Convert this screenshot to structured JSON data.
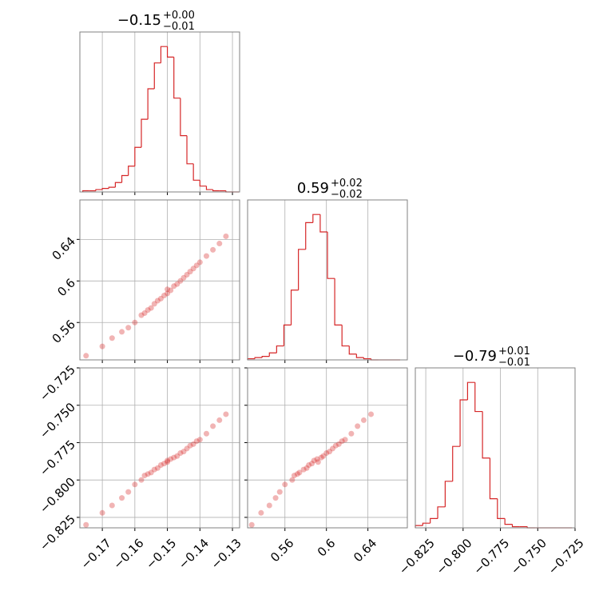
{
  "chart_data": {
    "type": "corner",
    "color": "#d62728",
    "grid": true,
    "parameters": [
      {
        "title": "−0.15",
        "upper": "+0.00",
        "lower": "−0.01",
        "lim": [
          -0.1769,
          -0.1278
        ],
        "ticks": [
          {
            "value": -0.17,
            "label": "−0.17"
          },
          {
            "value": -0.16,
            "label": "−0.16"
          },
          {
            "value": -0.15,
            "label": "−0.15"
          },
          {
            "value": -0.14,
            "label": "−0.14"
          },
          {
            "value": -0.13,
            "label": "−0.13"
          }
        ],
        "bins": [
          -0.176,
          -0.174,
          -0.172,
          -0.17,
          -0.168,
          -0.166,
          -0.164,
          -0.162,
          -0.16,
          -0.158,
          -0.156,
          -0.154,
          -0.152,
          -0.15,
          -0.148,
          -0.146,
          -0.144,
          -0.142,
          -0.14,
          -0.138,
          -0.136,
          -0.134,
          -0.132,
          -0.13,
          -0.128
        ],
        "counts": [
          1,
          1,
          2,
          3,
          4,
          8,
          14,
          22,
          38,
          62,
          88,
          110,
          124,
          115,
          80,
          48,
          24,
          10,
          5,
          2,
          1,
          1,
          0,
          0
        ]
      },
      {
        "title": "0.59",
        "upper": "+0.02",
        "lower": "−0.02",
        "lim": [
          0.524,
          0.678
        ],
        "ticks": [
          0.56,
          0.6,
          {
            "value": 0.64,
            "label": "0.64"
          }
        ],
        "bins": [
          0.524,
          0.531,
          0.538,
          0.545,
          0.552,
          0.559,
          0.566,
          0.573,
          0.58,
          0.587,
          0.594,
          0.601,
          0.608,
          0.615,
          0.622,
          0.629,
          0.636,
          0.643,
          0.65,
          0.657,
          0.664,
          0.671
        ],
        "counts": [
          1,
          2,
          3,
          6,
          12,
          30,
          60,
          95,
          118,
          125,
          110,
          70,
          30,
          12,
          5,
          2,
          1,
          0,
          0,
          0,
          0
        ]
      },
      {
        "title": "−0.79",
        "upper": "+0.01",
        "lower": "−0.01",
        "lim": [
          -0.832,
          -0.725
        ],
        "ticks": [
          {
            "value": -0.825,
            "label": "−0.825"
          },
          {
            "value": -0.8,
            "label": "−0.800"
          },
          {
            "value": -0.775,
            "label": "−0.775"
          },
          {
            "value": -0.75,
            "label": "−0.750"
          },
          {
            "value": -0.725,
            "label": "−0.725"
          }
        ],
        "bins": [
          -0.832,
          -0.827,
          -0.822,
          -0.817,
          -0.812,
          -0.807,
          -0.802,
          -0.797,
          -0.792,
          -0.787,
          -0.782,
          -0.777,
          -0.772,
          -0.767,
          -0.762,
          -0.757,
          -0.752,
          -0.747,
          -0.742,
          -0.737,
          -0.732,
          -0.727
        ],
        "counts": [
          2,
          4,
          8,
          18,
          40,
          70,
          110,
          125,
          100,
          60,
          25,
          8,
          3,
          1,
          1,
          0,
          0,
          0,
          0,
          0,
          0
        ]
      }
    ],
    "samples": [
      [
        -0.175,
        0.528,
        -0.83
      ],
      [
        -0.17,
        0.537,
        -0.822
      ],
      [
        -0.167,
        0.545,
        -0.817
      ],
      [
        -0.164,
        0.551,
        -0.812
      ],
      [
        -0.162,
        0.555,
        -0.808
      ],
      [
        -0.16,
        0.56,
        -0.803
      ],
      [
        -0.158,
        0.567,
        -0.8
      ],
      [
        -0.157,
        0.569,
        -0.797
      ],
      [
        -0.156,
        0.572,
        -0.796
      ],
      [
        -0.155,
        0.574,
        -0.795
      ],
      [
        -0.154,
        0.578,
        -0.793
      ],
      [
        -0.153,
        0.581,
        -0.792
      ],
      [
        -0.152,
        0.583,
        -0.79
      ],
      [
        -0.151,
        0.586,
        -0.789
      ],
      [
        -0.15,
        0.588,
        -0.787
      ],
      [
        -0.15,
        0.592,
        -0.788
      ],
      [
        -0.149,
        0.591,
        -0.786
      ],
      [
        -0.148,
        0.595,
        -0.785
      ],
      [
        -0.147,
        0.597,
        -0.784
      ],
      [
        -0.146,
        0.6,
        -0.782
      ],
      [
        -0.145,
        0.603,
        -0.781
      ],
      [
        -0.144,
        0.606,
        -0.779
      ],
      [
        -0.143,
        0.609,
        -0.777
      ],
      [
        -0.142,
        0.612,
        -0.776
      ],
      [
        -0.141,
        0.615,
        -0.774
      ],
      [
        -0.14,
        0.618,
        -0.773
      ],
      [
        -0.138,
        0.624,
        -0.769
      ],
      [
        -0.136,
        0.63,
        -0.764
      ],
      [
        -0.134,
        0.636,
        -0.76
      ],
      [
        -0.132,
        0.643,
        -0.756
      ]
    ]
  }
}
